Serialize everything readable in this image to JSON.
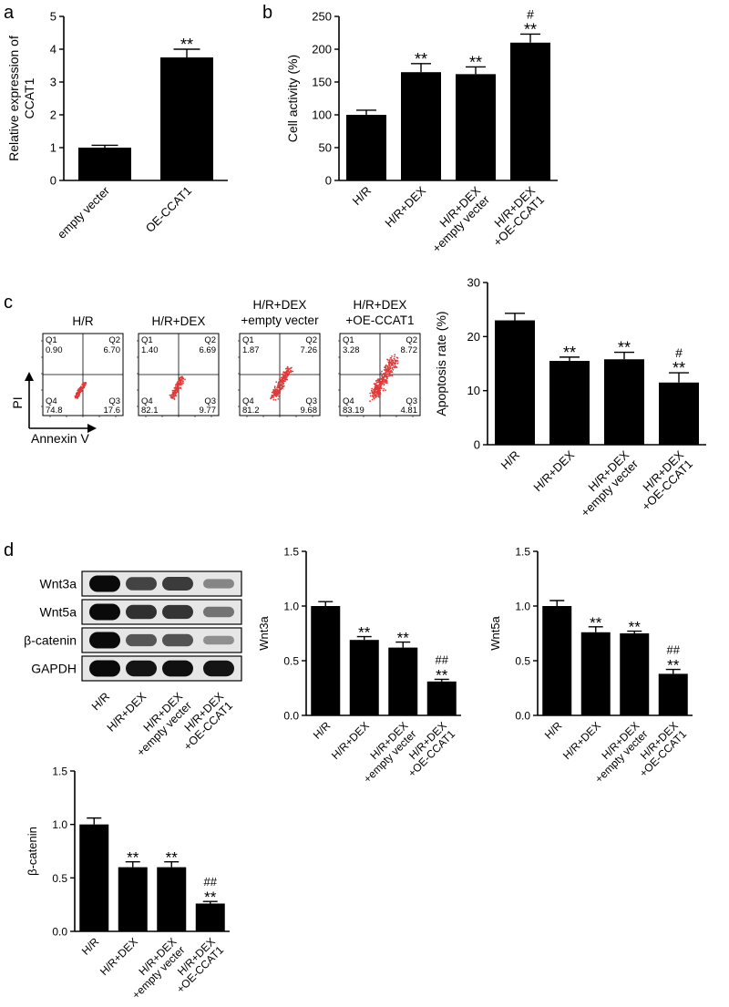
{
  "panels": {
    "a": {
      "letter": "a"
    },
    "b": {
      "letter": "b"
    },
    "c": {
      "letter": "c"
    },
    "d": {
      "letter": "d"
    }
  },
  "flow": {
    "samples": [
      {
        "title": [
          "H/R"
        ],
        "q1": "0.90",
        "q2": "6.70",
        "q3": "17.6",
        "q4": "74.8"
      },
      {
        "title": [
          "H/R+DEX"
        ],
        "q1": "1.40",
        "q2": "6.69",
        "q3": "9.77",
        "q4": "82.1"
      },
      {
        "title": [
          "H/R+DEX",
          "+empty vecter"
        ],
        "q1": "1.87",
        "q2": "7.26",
        "q3": "9.68",
        "q4": "81.2"
      },
      {
        "title": [
          "H/R+DEX",
          "+OE-CCAT1"
        ],
        "q1": "3.28",
        "q2": "8.72",
        "q3": "4.81",
        "q4": "83.19"
      }
    ],
    "quadrant_labels": [
      "Q1",
      "Q2",
      "Q3",
      "Q4"
    ],
    "y_axis": "PI",
    "x_axis": "Annexin V",
    "dot_color": "#e03a3a"
  },
  "western": {
    "rows": [
      "Wnt3a",
      "Wnt5a",
      "β-catenin",
      "GAPDH"
    ],
    "lanes": [
      [
        "H/R"
      ],
      [
        "H/R+DEX"
      ],
      [
        "H/R+DEX",
        "+empty vecter"
      ],
      [
        "H/R+DEX",
        "+OE-CCAT1"
      ]
    ],
    "relative_intensity": [
      [
        1.0,
        0.7,
        0.74,
        0.35
      ],
      [
        1.0,
        0.8,
        0.78,
        0.45
      ],
      [
        1.0,
        0.6,
        0.62,
        0.3
      ],
      [
        1.0,
        0.95,
        0.97,
        0.95
      ]
    ]
  },
  "chart_data": [
    {
      "id": "a",
      "type": "bar",
      "categories": [
        [
          "empty vecter"
        ],
        [
          "OE-CCAT1"
        ]
      ],
      "values": [
        1.0,
        3.75
      ],
      "errors": [
        0.07,
        0.25
      ],
      "annotations": [
        [],
        [
          "**"
        ]
      ],
      "ylabel": [
        "Relative expression of",
        "CCAT1"
      ],
      "ylim": [
        0,
        5
      ],
      "yticks": [
        0,
        1,
        2,
        3,
        4,
        5
      ],
      "tick_labels": [
        "0",
        "1",
        "2",
        "3",
        "4",
        "5"
      ],
      "xlabel": "",
      "grid": false,
      "rotate": 45
    },
    {
      "id": "b",
      "type": "bar",
      "categories": [
        [
          "H/R"
        ],
        [
          "H/R+DEX"
        ],
        [
          "H/R+DEX",
          "+empty vecter"
        ],
        [
          "H/R+DEX",
          "+OE-CCAT1"
        ]
      ],
      "values": [
        100,
        165,
        162,
        210
      ],
      "errors": [
        7,
        13,
        11,
        13
      ],
      "annotations": [
        [],
        [
          "**"
        ],
        [
          "**"
        ],
        [
          "#",
          "**"
        ]
      ],
      "ylabel": [
        "Cell activity (%)"
      ],
      "ylim": [
        0,
        250
      ],
      "yticks": [
        0,
        50,
        100,
        150,
        200,
        250
      ],
      "tick_labels": [
        "0",
        "50",
        "100",
        "150",
        "200",
        "250"
      ],
      "xlabel": "",
      "grid": false,
      "rotate": 45
    },
    {
      "id": "c",
      "type": "bar",
      "categories": [
        [
          "H/R"
        ],
        [
          "H/R+DEX"
        ],
        [
          "H/R+DEX",
          "+empty vecter"
        ],
        [
          "H/R+DEX",
          "+OE-CCAT1"
        ]
      ],
      "values": [
        23.0,
        15.5,
        15.8,
        11.5
      ],
      "errors": [
        1.3,
        0.7,
        1.3,
        1.8
      ],
      "annotations": [
        [],
        [
          "**"
        ],
        [
          "**"
        ],
        [
          "#",
          "**"
        ]
      ],
      "ylabel": [
        "Apoptosis rate (%)"
      ],
      "ylim": [
        0,
        30
      ],
      "yticks": [
        0,
        10,
        20,
        30
      ],
      "tick_labels": [
        "0",
        "10",
        "20",
        "30"
      ],
      "xlabel": "",
      "grid": false,
      "rotate": 45
    },
    {
      "id": "wnt3a",
      "type": "bar",
      "categories": [
        [
          "H/R"
        ],
        [
          "H/R+DEX"
        ],
        [
          "H/R+DEX",
          "+empty vecter"
        ],
        [
          "H/R+DEX",
          "+OE-CCAT1"
        ]
      ],
      "values": [
        1.0,
        0.69,
        0.62,
        0.31
      ],
      "errors": [
        0.04,
        0.03,
        0.05,
        0.02
      ],
      "annotations": [
        [],
        [
          "**"
        ],
        [
          "**"
        ],
        [
          "##",
          "**"
        ]
      ],
      "ylabel": [
        "Wnt3a"
      ],
      "ylim": [
        0,
        1.5
      ],
      "yticks": [
        0,
        0.5,
        1.0,
        1.5
      ],
      "tick_labels": [
        "0.0",
        "0.5",
        "1.0",
        "1.5"
      ],
      "xlabel": "",
      "grid": false,
      "rotate": 45
    },
    {
      "id": "wnt5a",
      "type": "bar",
      "categories": [
        [
          "H/R"
        ],
        [
          "H/R+DEX"
        ],
        [
          "H/R+DEX",
          "+empty vecter"
        ],
        [
          "H/R+DEX",
          "+OE-CCAT1"
        ]
      ],
      "values": [
        1.0,
        0.76,
        0.75,
        0.38
      ],
      "errors": [
        0.05,
        0.05,
        0.02,
        0.04
      ],
      "annotations": [
        [],
        [
          "**"
        ],
        [
          "**"
        ],
        [
          "##",
          "**"
        ]
      ],
      "ylabel": [
        "Wnt5a"
      ],
      "ylim": [
        0,
        1.5
      ],
      "yticks": [
        0,
        0.5,
        1.0,
        1.5
      ],
      "tick_labels": [
        "0.0",
        "0.5",
        "1.0",
        "1.5"
      ],
      "xlabel": "",
      "grid": false,
      "rotate": 45
    },
    {
      "id": "bcatenin",
      "type": "bar",
      "categories": [
        [
          "H/R"
        ],
        [
          "H/R+DEX"
        ],
        [
          "H/R+DEX",
          "+empty vecter"
        ],
        [
          "H/R+DEX",
          "+OE-CCAT1"
        ]
      ],
      "values": [
        1.0,
        0.6,
        0.6,
        0.26
      ],
      "errors": [
        0.06,
        0.05,
        0.05,
        0.02
      ],
      "annotations": [
        [],
        [
          "**"
        ],
        [
          "**"
        ],
        [
          "##",
          "**"
        ]
      ],
      "ylabel": [
        "β-catenin"
      ],
      "ylim": [
        0,
        1.5
      ],
      "yticks": [
        0,
        0.5,
        1.0,
        1.5
      ],
      "tick_labels": [
        "0.0",
        "0.5",
        "1.0",
        "1.5"
      ],
      "xlabel": "",
      "grid": false,
      "rotate": 45
    }
  ]
}
